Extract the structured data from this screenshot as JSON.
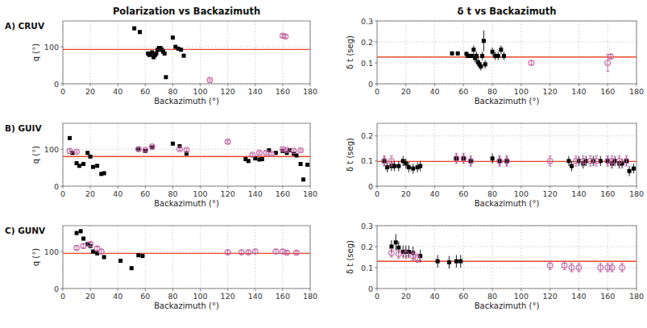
{
  "chart_data": [
    {
      "type": "scatter",
      "title": "Polarization vs Backazimuth",
      "annotation": "A) CRUV",
      "x_label": "Backazimuth (°)",
      "y_label": "q (°)",
      "xlim": [
        0,
        180
      ],
      "xticks": [
        0,
        20,
        40,
        60,
        80,
        100,
        120,
        140,
        160,
        180
      ],
      "ylim": [
        0,
        170
      ],
      "yticks": [
        0,
        100
      ],
      "grid": true,
      "hline": {
        "value": 93,
        "color": "#e8472a"
      },
      "series": [
        {
          "color": "#000000",
          "marker": "square",
          "x": [
            52,
            56,
            62,
            63,
            64,
            65,
            66,
            67,
            68,
            69,
            70,
            71,
            72,
            73,
            74,
            75,
            80,
            82,
            84,
            86,
            88
          ],
          "values": [
            150,
            140,
            82,
            78,
            82,
            85,
            72,
            77,
            82,
            92,
            97,
            97,
            92,
            87,
            82,
            18,
            125,
            100,
            95,
            92,
            76
          ],
          "errors": [
            5,
            5,
            3,
            3,
            3,
            3,
            3,
            3,
            3,
            3,
            3,
            3,
            3,
            3,
            3,
            3,
            3,
            3,
            3,
            3,
            3
          ]
        },
        {
          "color": "#c060a0",
          "marker": "circle-open",
          "x": [
            107,
            160,
            162
          ],
          "values": [
            10,
            130,
            128
          ],
          "errors": [
            3,
            4,
            4
          ]
        }
      ]
    },
    {
      "type": "scatter",
      "title": "δ t vs Backazimuth",
      "x_label": "Backazimuth (°)",
      "y_label": "δ t (seg)",
      "xlim": [
        0,
        180
      ],
      "xticks": [
        0,
        20,
        40,
        60,
        80,
        100,
        120,
        140,
        160,
        180
      ],
      "ylim": [
        0,
        0.3
      ],
      "yticks": [
        0,
        0.1,
        0.2,
        0.3
      ],
      "grid": true,
      "hline": {
        "value": 0.128,
        "color": "#e8472a"
      },
      "series": [
        {
          "color": "#000000",
          "marker": "square",
          "x": [
            52,
            56,
            62,
            63,
            64,
            65,
            66,
            67,
            68,
            69,
            70,
            71,
            72,
            73,
            74,
            75,
            80,
            82,
            84,
            86,
            88
          ],
          "values": [
            0.145,
            0.145,
            0.143,
            0.133,
            0.133,
            0.133,
            0.133,
            0.163,
            0.123,
            0.133,
            0.103,
            0.093,
            0.083,
            0.133,
            0.205,
            0.093,
            0.153,
            0.133,
            0.133,
            0.163,
            0.133
          ],
          "errors": [
            0.01,
            0.01,
            0.01,
            0.01,
            0.01,
            0.01,
            0.01,
            0.02,
            0.02,
            0.02,
            0.02,
            0.02,
            0.02,
            0.02,
            0.05,
            0.02,
            0.02,
            0.02,
            0.02,
            0.02,
            0.02
          ]
        },
        {
          "color": "#c060a0",
          "marker": "circle-open",
          "x": [
            107,
            160,
            162
          ],
          "values": [
            0.1,
            0.1,
            0.13
          ],
          "errors": [
            0.01,
            0.04,
            0.01
          ]
        }
      ]
    },
    {
      "type": "scatter",
      "annotation": "B) GUIV",
      "x_label": "Backazimuth (°)",
      "y_label": "q (°)",
      "xlim": [
        0,
        180
      ],
      "xticks": [
        0,
        20,
        40,
        60,
        80,
        100,
        120,
        140,
        160,
        180
      ],
      "ylim": [
        0,
        170
      ],
      "yticks": [
        0,
        100
      ],
      "grid": true,
      "hline": {
        "value": 80,
        "color": "#e8472a"
      },
      "series": [
        {
          "color": "#000000",
          "marker": "square",
          "x": [
            5,
            7,
            10,
            12,
            15,
            18,
            20,
            22,
            25,
            28,
            30,
            55,
            60,
            65,
            80,
            85,
            90,
            133,
            135,
            140,
            143,
            145,
            150,
            155,
            160,
            163,
            165,
            168,
            170,
            173,
            175,
            178
          ],
          "values": [
            130,
            90,
            62,
            55,
            60,
            90,
            80,
            52,
            55,
            33,
            35,
            100,
            95,
            105,
            115,
            108,
            88,
            73,
            68,
            75,
            72,
            73,
            97,
            90,
            95,
            90,
            97,
            88,
            83,
            60,
            18,
            58
          ],
          "errors": [
            5,
            4,
            4,
            4,
            4,
            4,
            4,
            4,
            4,
            4,
            4,
            4,
            4,
            4,
            4,
            4,
            4,
            4,
            4,
            4,
            4,
            4,
            4,
            4,
            4,
            4,
            4,
            4,
            4,
            4,
            4,
            4
          ]
        },
        {
          "color": "#c060a0",
          "marker": "circle-open",
          "x": [
            5,
            10,
            55,
            60,
            65,
            85,
            90,
            120,
            138,
            143,
            148,
            152,
            160,
            163,
            168,
            173
          ],
          "values": [
            95,
            93,
            100,
            98,
            107,
            100,
            98,
            120,
            85,
            90,
            90,
            87,
            100,
            98,
            95,
            97
          ],
          "errors": [
            3,
            3,
            3,
            3,
            3,
            3,
            3,
            3,
            3,
            3,
            3,
            3,
            3,
            3,
            3,
            3
          ]
        }
      ]
    },
    {
      "type": "scatter",
      "x_label": "Backazimuth (°)",
      "y_label": "δ t (seg)",
      "xlim": [
        0,
        180
      ],
      "xticks": [
        0,
        20,
        40,
        60,
        80,
        100,
        120,
        140,
        160,
        180
      ],
      "ylim": [
        0,
        0.25
      ],
      "yticks": [
        0,
        0.1,
        0.2
      ],
      "grid": true,
      "hline": {
        "value": 0.098,
        "color": "#e8472a"
      },
      "series": [
        {
          "color": "#000000",
          "marker": "square",
          "x": [
            5,
            7,
            10,
            12,
            15,
            18,
            20,
            22,
            25,
            28,
            30,
            55,
            60,
            65,
            80,
            85,
            90,
            133,
            135,
            140,
            143,
            145,
            150,
            155,
            160,
            163,
            165,
            168,
            170,
            173,
            175,
            178
          ],
          "values": [
            0.1,
            0.075,
            0.08,
            0.08,
            0.08,
            0.1,
            0.09,
            0.075,
            0.07,
            0.075,
            0.08,
            0.11,
            0.11,
            0.1,
            0.11,
            0.1,
            0.1,
            0.1,
            0.08,
            0.1,
            0.09,
            0.1,
            0.1,
            0.1,
            0.1,
            0.09,
            0.1,
            0.09,
            0.09,
            0.1,
            0.06,
            0.07
          ],
          "errors": [
            0.02,
            0.02,
            0.02,
            0.02,
            0.02,
            0.02,
            0.02,
            0.02,
            0.02,
            0.02,
            0.02,
            0.02,
            0.02,
            0.02,
            0.02,
            0.02,
            0.02,
            0.02,
            0.02,
            0.02,
            0.02,
            0.02,
            0.02,
            0.02,
            0.02,
            0.02,
            0.02,
            0.02,
            0.02,
            0.02,
            0.02,
            0.02
          ]
        },
        {
          "color": "#c060a0",
          "marker": "circle-open",
          "x": [
            5,
            10,
            55,
            60,
            65,
            85,
            90,
            120,
            138,
            143,
            148,
            152,
            160,
            163,
            168,
            173
          ],
          "values": [
            0.1,
            0.1,
            0.11,
            0.11,
            0.1,
            0.1,
            0.1,
            0.1,
            0.1,
            0.1,
            0.1,
            0.1,
            0.1,
            0.1,
            0.1,
            0.1
          ],
          "errors": [
            0.02,
            0.02,
            0.02,
            0.02,
            0.02,
            0.02,
            0.02,
            0.02,
            0.02,
            0.02,
            0.02,
            0.02,
            0.02,
            0.02,
            0.02,
            0.02
          ]
        }
      ]
    },
    {
      "type": "scatter",
      "annotation": "C) GUNV",
      "x_label": "Backazimuth (°)",
      "y_label": "q (°)",
      "xlim": [
        0,
        180
      ],
      "xticks": [
        0,
        20,
        40,
        60,
        80,
        100,
        120,
        140,
        160,
        180
      ],
      "ylim": [
        0,
        170
      ],
      "yticks": [
        0,
        100
      ],
      "grid": true,
      "hline": {
        "value": 95,
        "color": "#e8472a"
      },
      "series": [
        {
          "color": "#000000",
          "marker": "square",
          "x": [
            10,
            13,
            15,
            18,
            20,
            22,
            25,
            30,
            42,
            50,
            55,
            58
          ],
          "values": [
            150,
            155,
            135,
            120,
            115,
            100,
            95,
            85,
            75,
            55,
            90,
            88
          ],
          "errors": [
            6,
            6,
            5,
            5,
            5,
            5,
            5,
            5,
            5,
            5,
            5,
            5
          ]
        },
        {
          "color": "#c060a0",
          "marker": "circle-open",
          "x": [
            10,
            15,
            20,
            25,
            28,
            120,
            130,
            135,
            140,
            155,
            160,
            163,
            170
          ],
          "values": [
            110,
            115,
            120,
            108,
            100,
            98,
            98,
            98,
            100,
            100,
            100,
            97,
            97
          ],
          "errors": [
            5,
            5,
            5,
            5,
            5,
            5,
            5,
            5,
            5,
            5,
            5,
            5,
            5
          ]
        }
      ]
    },
    {
      "type": "scatter",
      "x_label": "Backazimuth (°)",
      "y_label": "δ t (seg)",
      "xlim": [
        0,
        180
      ],
      "xticks": [
        0,
        20,
        40,
        60,
        80,
        100,
        120,
        140,
        160,
        180
      ],
      "ylim": [
        0,
        0.3
      ],
      "yticks": [
        0,
        0.1,
        0.2,
        0.3
      ],
      "grid": true,
      "hline": {
        "value": 0.13,
        "color": "#e8472a"
      },
      "series": [
        {
          "color": "#000000",
          "marker": "square",
          "x": [
            10,
            13,
            15,
            18,
            20,
            22,
            25,
            30,
            42,
            50,
            55,
            58
          ],
          "values": [
            0.2,
            0.22,
            0.195,
            0.175,
            0.175,
            0.175,
            0.17,
            0.155,
            0.13,
            0.125,
            0.13,
            0.13
          ],
          "errors": [
            0.03,
            0.04,
            0.03,
            0.03,
            0.03,
            0.03,
            0.03,
            0.03,
            0.03,
            0.03,
            0.03,
            0.03
          ]
        },
        {
          "color": "#c060a0",
          "marker": "circle-open",
          "x": [
            10,
            15,
            20,
            25,
            28,
            120,
            130,
            135,
            140,
            155,
            160,
            163,
            170
          ],
          "values": [
            0.17,
            0.165,
            0.165,
            0.155,
            0.145,
            0.11,
            0.11,
            0.1,
            0.1,
            0.1,
            0.1,
            0.1,
            0.1
          ],
          "errors": [
            0.02,
            0.02,
            0.02,
            0.02,
            0.02,
            0.02,
            0.02,
            0.02,
            0.02,
            0.02,
            0.02,
            0.02,
            0.02
          ]
        }
      ]
    }
  ]
}
